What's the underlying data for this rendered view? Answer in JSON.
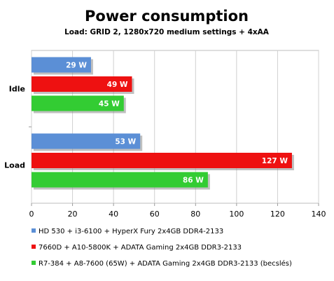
{
  "chart_data": {
    "type": "bar",
    "orientation": "horizontal",
    "title": "Power consumption",
    "subtitle": "Load: GRID  2, 1280x720 medium settings + 4xAA",
    "categories": [
      "Idle",
      "Load"
    ],
    "series": [
      {
        "name": "HD 530 + i3-6100 + HyperX Fury 2x4GB DDR4-2133",
        "color": "#5b8fd6",
        "values": [
          29,
          53
        ],
        "labels": [
          "29 W",
          "53 W"
        ]
      },
      {
        "name": "7660D + A10-5800K + ADATA Gaming 2x4GB DDR3-2133",
        "color": "#ee1111",
        "values": [
          49,
          127
        ],
        "labels": [
          "49 W",
          "127 W"
        ]
      },
      {
        "name": "R7-384 + A8-7600 (65W) + ADATA Gaming 2x4GB DDR3-2133 (becslés)",
        "color": "#33cc33",
        "values": [
          45,
          86
        ],
        "labels": [
          "45 W",
          "86 W"
        ]
      }
    ],
    "xlim": [
      0,
      140
    ],
    "xticks": [
      "0",
      "20",
      "40",
      "60",
      "80",
      "100",
      "120",
      "140"
    ],
    "grid": true,
    "legend_position": "bottom"
  }
}
